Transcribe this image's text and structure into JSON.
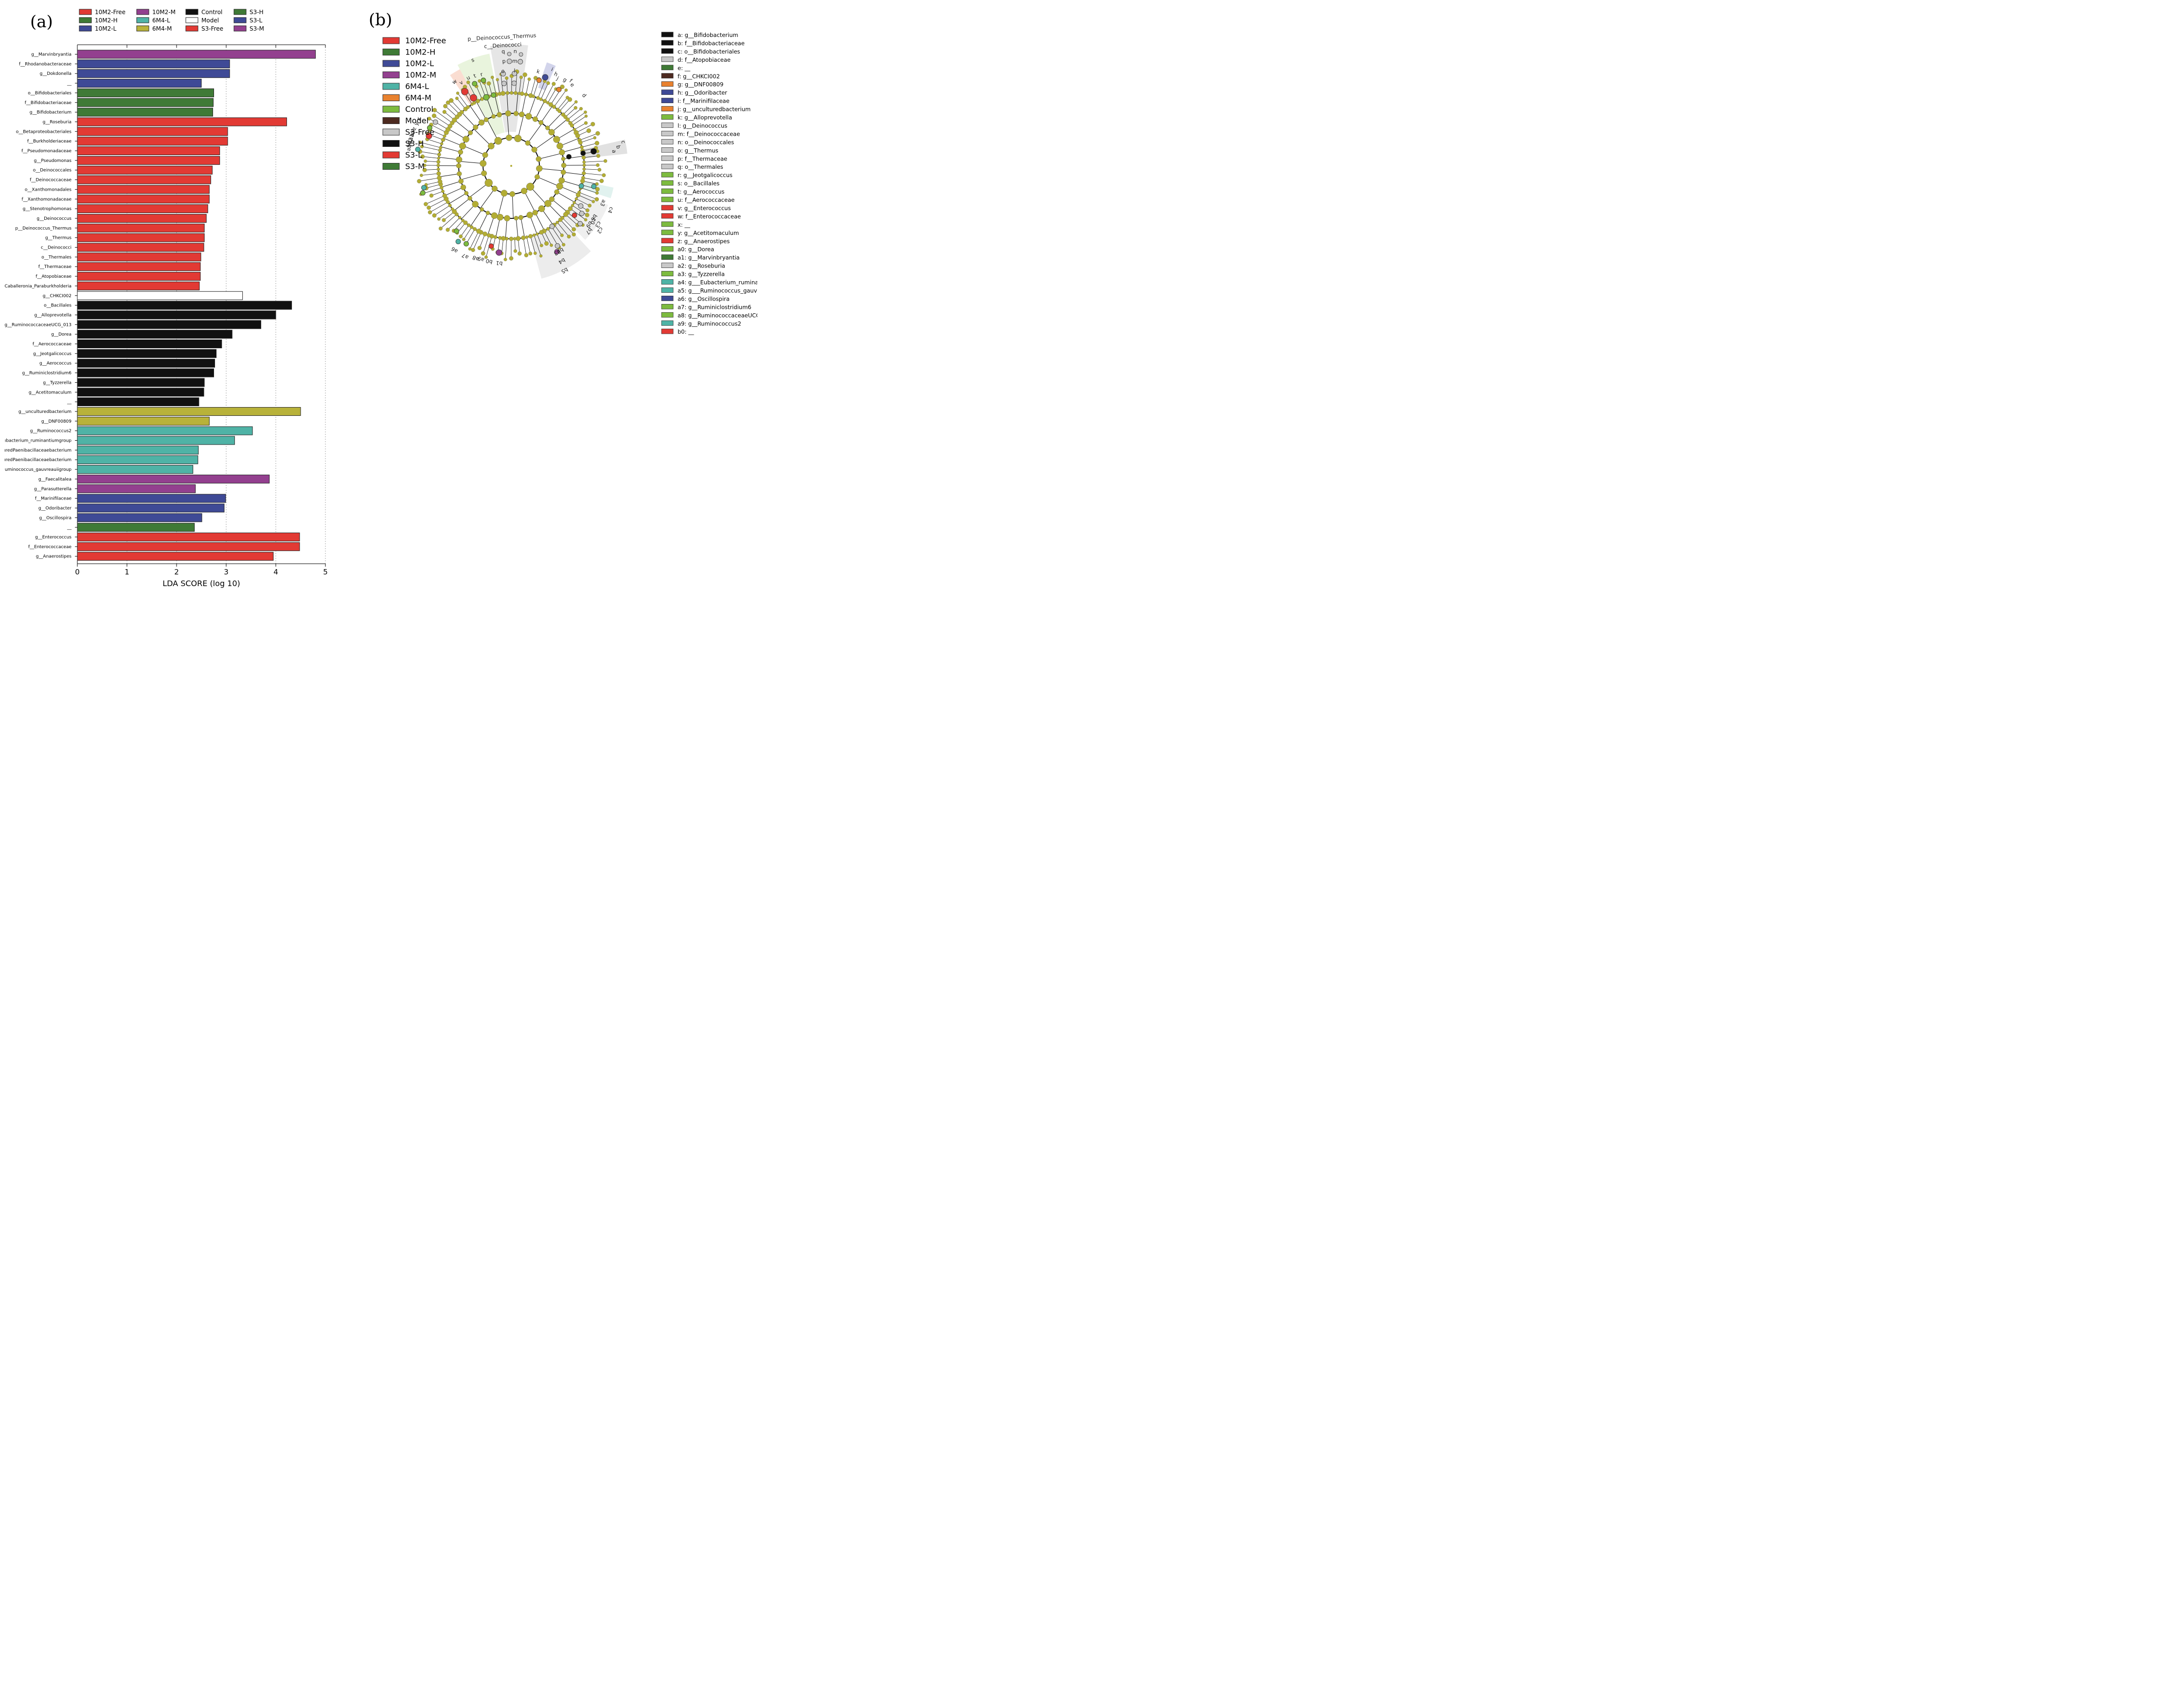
{
  "panel_a_label": "(a)",
  "panel_b_label": "(b)",
  "chart_data": [
    {
      "type": "bar",
      "orientation": "horizontal",
      "xlabel": "LDA SCORE (log 10)",
      "xlim": [
        0,
        5
      ],
      "xticks": [
        "0",
        "1",
        "2",
        "3",
        "4",
        "5"
      ],
      "grid": "vertical dotted",
      "legend_placement": "top",
      "legend": [
        {
          "name": "10M2-Free",
          "color": "#e23a34"
        },
        {
          "name": "10M2-H",
          "color": "#3f7a36"
        },
        {
          "name": "10M2-L",
          "color": "#3f4a96"
        },
        {
          "name": "10M2-M",
          "color": "#93408f"
        },
        {
          "name": "6M4-L",
          "color": "#4fb3a6"
        },
        {
          "name": "6M4-M",
          "color": "#b8b23a"
        },
        {
          "name": "Control",
          "color": "#111111"
        },
        {
          "name": "Model",
          "color": "#ffffff"
        },
        {
          "name": "S3-Free",
          "color": "#e23a34"
        },
        {
          "name": "S3-H",
          "color": "#3f7a36"
        },
        {
          "name": "S3-L",
          "color": "#3f4a96"
        },
        {
          "name": "S3-M",
          "color": "#93408f"
        }
      ],
      "bars": [
        {
          "label": "g__Marvinbryantia",
          "value": 4.8,
          "color": "#93408f"
        },
        {
          "label": "f__Rhodanobacteraceae",
          "value": 3.07,
          "color": "#3f4a96"
        },
        {
          "label": "g__Dokdonella",
          "value": 3.07,
          "color": "#3f4a96"
        },
        {
          "label": "__",
          "value": 2.5,
          "color": "#3f4a96"
        },
        {
          "label": "o__Bifidobacteriales",
          "value": 2.75,
          "color": "#3f7a36"
        },
        {
          "label": "f__Bifidobacteriaceae",
          "value": 2.74,
          "color": "#3f7a36"
        },
        {
          "label": "g__Bifidobacterium",
          "value": 2.73,
          "color": "#3f7a36"
        },
        {
          "label": "g__Roseburia",
          "value": 4.22,
          "color": "#e23a34"
        },
        {
          "label": "o__Betaproteobacteriales",
          "value": 3.03,
          "color": "#e23a34"
        },
        {
          "label": "f__Burkholderiaceae",
          "value": 3.03,
          "color": "#e23a34"
        },
        {
          "label": "f__Pseudomonadaceae",
          "value": 2.87,
          "color": "#e23a34"
        },
        {
          "label": "g__Pseudomonas",
          "value": 2.87,
          "color": "#e23a34"
        },
        {
          "label": "o__Deinococcales",
          "value": 2.72,
          "color": "#e23a34"
        },
        {
          "label": "f__Deinococcaceae",
          "value": 2.69,
          "color": "#e23a34"
        },
        {
          "label": "o__Xanthomonadales",
          "value": 2.66,
          "color": "#e23a34"
        },
        {
          "label": "f__Xanthomonadaceae",
          "value": 2.66,
          "color": "#e23a34"
        },
        {
          "label": "g__Stenotrophomonas",
          "value": 2.63,
          "color": "#e23a34"
        },
        {
          "label": "g__Deinococcus",
          "value": 2.6,
          "color": "#e23a34"
        },
        {
          "label": "p__Deinococcus_Thermus",
          "value": 2.56,
          "color": "#e23a34"
        },
        {
          "label": "g__Thermus",
          "value": 2.56,
          "color": "#e23a34"
        },
        {
          "label": "c__Deinococci",
          "value": 2.55,
          "color": "#e23a34"
        },
        {
          "label": "o__Thermales",
          "value": 2.49,
          "color": "#e23a34"
        },
        {
          "label": "f__Thermaceae",
          "value": 2.48,
          "color": "#e23a34"
        },
        {
          "label": "f__Atopobiaceae",
          "value": 2.48,
          "color": "#e23a34"
        },
        {
          "label": "Caballeronia_Paraburkholderia",
          "value": 2.46,
          "color": "#e23a34"
        },
        {
          "label": "g__CHKCI002",
          "value": 3.33,
          "color": "#ffffff"
        },
        {
          "label": "o__Bacillales",
          "value": 4.32,
          "color": "#111111"
        },
        {
          "label": "g__Alloprevotella",
          "value": 4.0,
          "color": "#111111"
        },
        {
          "label": "g__RuminococcaceaeUCG_013",
          "value": 3.7,
          "color": "#111111"
        },
        {
          "label": "g__Dorea",
          "value": 3.12,
          "color": "#111111"
        },
        {
          "label": "f__Aerococcaceae",
          "value": 2.91,
          "color": "#111111"
        },
        {
          "label": "g__Jeotgalicoccus",
          "value": 2.8,
          "color": "#111111"
        },
        {
          "label": "g__Aerococcus",
          "value": 2.77,
          "color": "#111111"
        },
        {
          "label": "g__Ruminiclostridium6",
          "value": 2.75,
          "color": "#111111"
        },
        {
          "label": "g__Tyzzerella",
          "value": 2.56,
          "color": "#111111"
        },
        {
          "label": "g__Acetitomaculum",
          "value": 2.55,
          "color": "#111111"
        },
        {
          "label": "__",
          "value": 2.45,
          "color": "#111111"
        },
        {
          "label": "g__unculturedbacterium",
          "value": 4.5,
          "color": "#b8b23a"
        },
        {
          "label": "g__DNF00809",
          "value": 2.66,
          "color": "#b8b23a"
        },
        {
          "label": "g__Ruminococcus2",
          "value": 3.53,
          "color": "#4fb3a6"
        },
        {
          "label": "ıbacterium_ruminantiumgroup",
          "value": 3.17,
          "color": "#4fb3a6"
        },
        {
          "label": "ıredPaenibacillaceaebacterium",
          "value": 2.44,
          "color": "#4fb3a6"
        },
        {
          "label": "ıredPaenibacillaceaebacterium",
          "value": 2.43,
          "color": "#4fb3a6"
        },
        {
          "label": "uminococcus_gauvreauiigroup",
          "value": 2.33,
          "color": "#4fb3a6"
        },
        {
          "label": "g__Faecalitalea",
          "value": 3.87,
          "color": "#93408f"
        },
        {
          "label": "g__Parasutterella",
          "value": 2.38,
          "color": "#93408f"
        },
        {
          "label": "f__Marinifilaceae",
          "value": 2.99,
          "color": "#3f4a96"
        },
        {
          "label": "g__Odoribacter",
          "value": 2.96,
          "color": "#3f4a96"
        },
        {
          "label": "g__Oscillospira",
          "value": 2.51,
          "color": "#3f4a96"
        },
        {
          "label": "__",
          "value": 2.36,
          "color": "#3f7a36"
        },
        {
          "label": "g__Enterococcus",
          "value": 4.48,
          "color": "#e23a34"
        },
        {
          "label": "f__Enterococcaceae",
          "value": 4.48,
          "color": "#e23a34"
        },
        {
          "label": "g__Anaerostipes",
          "value": 3.95,
          "color": "#e23a34"
        }
      ]
    },
    {
      "type": "cladogram",
      "legend": [
        {
          "name": "10M2-Free",
          "color": "#e23a34"
        },
        {
          "name": "10M2-H",
          "color": "#3f7a36"
        },
        {
          "name": "10M2-L",
          "color": "#3f4a96"
        },
        {
          "name": "10M2-M",
          "color": "#93408f"
        },
        {
          "name": "6M4-L",
          "color": "#4fb3a6"
        },
        {
          "name": "6M4-M",
          "color": "#e9822f"
        },
        {
          "name": "Control",
          "color": "#7dbb3f"
        },
        {
          "name": "Model",
          "color": "#4d2a20"
        },
        {
          "name": "S3-Free",
          "color": "#c8c8c8"
        },
        {
          "name": "S3-H",
          "color": "#111111"
        },
        {
          "name": "S3-L",
          "color": "#e23a34"
        },
        {
          "name": "S3-M",
          "color": "#3f7a36"
        }
      ],
      "clade_labels": [
        {
          "text": "p__Deinococcus_Thermus"
        },
        {
          "text": "c__Deinococci"
        }
      ],
      "taxa_key": [
        {
          "text": "a: g__Bifidobacterium",
          "color": "#111111"
        },
        {
          "text": "b: f__Bifidobacteriaceae",
          "color": "#111111"
        },
        {
          "text": "c: o__Bifidobacteriales",
          "color": "#111111"
        },
        {
          "text": "d: f__Atopobiaceae",
          "color": "#c8c8c8"
        },
        {
          "text": "e: __",
          "color": "#3f7a36"
        },
        {
          "text": "f: g__CHKCI002",
          "color": "#4d2a20"
        },
        {
          "text": "g: g__DNF00809",
          "color": "#e9822f"
        },
        {
          "text": "h: g__Odoribacter",
          "color": "#3f4a96"
        },
        {
          "text": "i: f__Marinifilaceae",
          "color": "#3f4a96"
        },
        {
          "text": "j: g__unculturedbacterium",
          "color": "#e9822f"
        },
        {
          "text": "k: g__Alloprevotella",
          "color": "#7dbb3f"
        },
        {
          "text": "l: g__Deinococcus",
          "color": "#c8c8c8"
        },
        {
          "text": "m: f__Deinococcaceae",
          "color": "#c8c8c8"
        },
        {
          "text": "n: o__Deinococcales",
          "color": "#c8c8c8"
        },
        {
          "text": "o: g__Thermus",
          "color": "#c8c8c8"
        },
        {
          "text": "p: f__Thermaceae",
          "color": "#c8c8c8"
        },
        {
          "text": "q: o__Thermales",
          "color": "#c8c8c8"
        },
        {
          "text": "r: g__Jeotgalicoccus",
          "color": "#7dbb3f"
        },
        {
          "text": "s: o__Bacillales",
          "color": "#7dbb3f"
        },
        {
          "text": "t: g__Aerococcus",
          "color": "#7dbb3f"
        },
        {
          "text": "u: f__Aerococcaceae",
          "color": "#7dbb3f"
        },
        {
          "text": "v: g__Enterococcus",
          "color": "#e23a34"
        },
        {
          "text": "w: f__Enterococcaceae",
          "color": "#e23a34"
        },
        {
          "text": "x: __",
          "color": "#7dbb3f"
        },
        {
          "text": "y: g__Acetitomaculum",
          "color": "#7dbb3f"
        },
        {
          "text": "z: g__Anaerostipes",
          "color": "#e23a34"
        },
        {
          "text": "a0: g__Dorea",
          "color": "#7dbb3f"
        },
        {
          "text": "a1: g__Marvinbryantia",
          "color": "#3f7a36"
        },
        {
          "text": "a2: g__Roseburia",
          "color": "#c8c8c8"
        },
        {
          "text": "a3: g__Tyzzerella",
          "color": "#7dbb3f"
        },
        {
          "text": "a4: g___Eubacterium_rumina",
          "color": "#4fb3a6"
        },
        {
          "text": "a5: g___Ruminococcus_gauvı",
          "color": "#4fb3a6"
        },
        {
          "text": "a6: g__Oscillospira",
          "color": "#3f4a96"
        },
        {
          "text": "a7: g__Ruminiclostridium6",
          "color": "#7dbb3f"
        },
        {
          "text": "a8: g__RuminococcaceaeUCC",
          "color": "#7dbb3f"
        },
        {
          "text": "a9: g__Ruminococcus2",
          "color": "#4fb3a6"
        },
        {
          "text": "b0: __",
          "color": "#e23a34"
        }
      ],
      "node_letters": [
        {
          "text": "q",
          "group": "deino"
        },
        {
          "text": "n",
          "group": "deino"
        },
        {
          "text": "p",
          "group": "deino"
        },
        {
          "text": "m",
          "group": "deino"
        },
        {
          "text": "o",
          "group": "deino"
        },
        {
          "text": "l",
          "group": "deino"
        },
        {
          "text": "s",
          "group": "bac"
        },
        {
          "text": "u",
          "group": "bac"
        },
        {
          "text": "t",
          "group": "bac"
        },
        {
          "text": "r",
          "group": "bac"
        },
        {
          "text": "w",
          "group": "ent"
        },
        {
          "text": "v",
          "group": "ent"
        },
        {
          "text": "k",
          "group": "k"
        },
        {
          "text": "i",
          "group": "i"
        },
        {
          "text": "h",
          "group": "h"
        },
        {
          "text": "j",
          "group": "j"
        },
        {
          "text": "g",
          "group": "g"
        },
        {
          "text": "f",
          "group": "f"
        },
        {
          "text": "e",
          "group": "e"
        },
        {
          "text": "d",
          "group": "d"
        },
        {
          "text": "c",
          "group": "bif"
        },
        {
          "text": "b",
          "group": "bif"
        },
        {
          "text": "a",
          "group": "bif"
        },
        {
          "text": "a3",
          "group": "a"
        },
        {
          "text": "c4",
          "group": "a"
        },
        {
          "text": "c2",
          "group": "a"
        },
        {
          "text": "c3",
          "group": "a"
        },
        {
          "text": "b7",
          "group": "a"
        },
        {
          "text": "b9",
          "group": "a"
        },
        {
          "text": "c0",
          "group": "a"
        },
        {
          "text": "b6",
          "group": "a"
        },
        {
          "text": "b5",
          "group": "b5"
        },
        {
          "text": "b4",
          "group": "b5"
        },
        {
          "text": "b3",
          "group": "b5"
        },
        {
          "text": "b2",
          "group": "b5"
        },
        {
          "text": "b1",
          "group": "b1"
        },
        {
          "text": "b0",
          "group": "b1"
        },
        {
          "text": "a9",
          "group": "a9"
        },
        {
          "text": "a8",
          "group": "a9"
        },
        {
          "text": "a7",
          "group": "a9"
        },
        {
          "text": "a6",
          "group": "a9"
        },
        {
          "text": "a5",
          "group": "a9"
        },
        {
          "text": "a4",
          "group": "left"
        },
        {
          "text": "a2",
          "group": "left"
        },
        {
          "text": "a1",
          "group": "left"
        },
        {
          "text": "a0",
          "group": "left"
        },
        {
          "text": "z",
          "group": "left"
        },
        {
          "text": "y",
          "group": "left"
        },
        {
          "text": "x",
          "group": "left"
        }
      ]
    }
  ]
}
